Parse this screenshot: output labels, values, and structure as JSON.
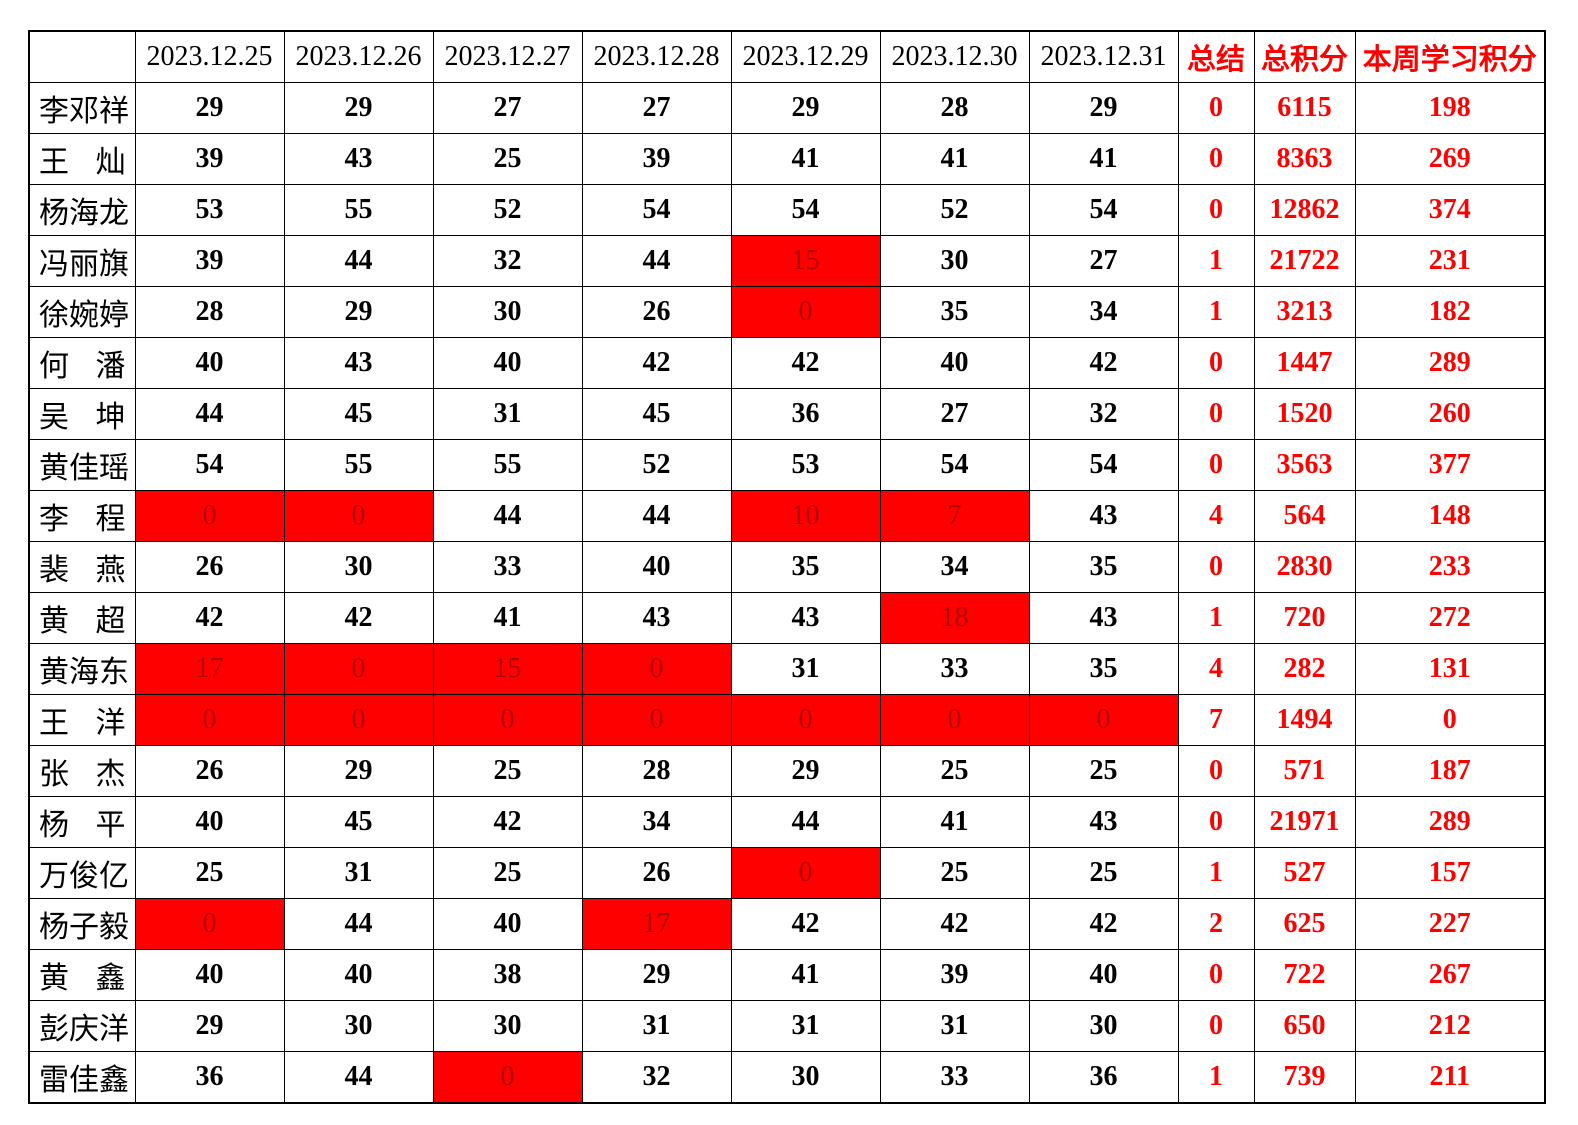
{
  "colors": {
    "accent_red": "#ff0000",
    "highlight_bg": "#ff0000",
    "highlight_text": "#b00000",
    "grid_line": "#000000"
  },
  "table": {
    "corner_label": "",
    "date_columns": [
      "2023.12.25",
      "2023.12.26",
      "2023.12.27",
      "2023.12.28",
      "2023.12.29",
      "2023.12.30",
      "2023.12.31"
    ],
    "summary_columns": [
      "总结",
      "总积分",
      "本周学习积分"
    ],
    "rows": [
      {
        "name": "李邓祥",
        "days": [
          29,
          29,
          27,
          27,
          29,
          28,
          29
        ],
        "red": [],
        "summary": 0,
        "total": 6115,
        "week": 198
      },
      {
        "name": "王灿",
        "days": [
          39,
          43,
          25,
          39,
          41,
          41,
          41
        ],
        "red": [],
        "summary": 0,
        "total": 8363,
        "week": 269
      },
      {
        "name": "杨海龙",
        "days": [
          53,
          55,
          52,
          54,
          54,
          52,
          54
        ],
        "red": [],
        "summary": 0,
        "total": 12862,
        "week": 374
      },
      {
        "name": "冯丽旗",
        "days": [
          39,
          44,
          32,
          44,
          15,
          30,
          27
        ],
        "red": [
          4
        ],
        "summary": 1,
        "total": 21722,
        "week": 231
      },
      {
        "name": "徐婉婷",
        "days": [
          28,
          29,
          30,
          26,
          0,
          35,
          34
        ],
        "red": [
          4
        ],
        "summary": 1,
        "total": 3213,
        "week": 182
      },
      {
        "name": "何潘",
        "days": [
          40,
          43,
          40,
          42,
          42,
          40,
          42
        ],
        "red": [],
        "summary": 0,
        "total": 1447,
        "week": 289
      },
      {
        "name": "吴坤",
        "days": [
          44,
          45,
          31,
          45,
          36,
          27,
          32
        ],
        "red": [],
        "summary": 0,
        "total": 1520,
        "week": 260
      },
      {
        "name": "黄佳瑶",
        "days": [
          54,
          55,
          55,
          52,
          53,
          54,
          54
        ],
        "red": [],
        "summary": 0,
        "total": 3563,
        "week": 377
      },
      {
        "name": "李程",
        "days": [
          0,
          0,
          44,
          44,
          10,
          7,
          43
        ],
        "red": [
          0,
          1,
          4,
          5
        ],
        "summary": 4,
        "total": 564,
        "week": 148
      },
      {
        "name": "裴燕",
        "days": [
          26,
          30,
          33,
          40,
          35,
          34,
          35
        ],
        "red": [],
        "summary": 0,
        "total": 2830,
        "week": 233
      },
      {
        "name": "黄超",
        "days": [
          42,
          42,
          41,
          43,
          43,
          18,
          43
        ],
        "red": [
          5
        ],
        "summary": 1,
        "total": 720,
        "week": 272
      },
      {
        "name": "黄海东",
        "days": [
          17,
          0,
          15,
          0,
          31,
          33,
          35
        ],
        "red": [
          0,
          1,
          2,
          3
        ],
        "summary": 4,
        "total": 282,
        "week": 131
      },
      {
        "name": "王洋",
        "days": [
          0,
          0,
          0,
          0,
          0,
          0,
          0
        ],
        "red": [
          0,
          1,
          2,
          3,
          4,
          5,
          6
        ],
        "summary": 7,
        "total": 1494,
        "week": 0
      },
      {
        "name": "张杰",
        "days": [
          26,
          29,
          25,
          28,
          29,
          25,
          25
        ],
        "red": [],
        "summary": 0,
        "total": 571,
        "week": 187
      },
      {
        "name": "杨平",
        "days": [
          40,
          45,
          42,
          34,
          44,
          41,
          43
        ],
        "red": [],
        "summary": 0,
        "total": 21971,
        "week": 289
      },
      {
        "name": "万俊亿",
        "days": [
          25,
          31,
          25,
          26,
          0,
          25,
          25
        ],
        "red": [
          4
        ],
        "summary": 1,
        "total": 527,
        "week": 157
      },
      {
        "name": "杨子毅",
        "days": [
          0,
          44,
          40,
          17,
          42,
          42,
          42
        ],
        "red": [
          0,
          3
        ],
        "summary": 2,
        "total": 625,
        "week": 227
      },
      {
        "name": "黄鑫",
        "days": [
          40,
          40,
          38,
          29,
          41,
          39,
          40
        ],
        "red": [],
        "summary": 0,
        "total": 722,
        "week": 267
      },
      {
        "name": "彭庆洋",
        "days": [
          29,
          30,
          30,
          31,
          31,
          31,
          30
        ],
        "red": [],
        "summary": 0,
        "total": 650,
        "week": 212
      },
      {
        "name": "雷佳鑫",
        "days": [
          36,
          44,
          0,
          32,
          30,
          33,
          36
        ],
        "red": [
          2
        ],
        "summary": 1,
        "total": 739,
        "week": 211
      }
    ]
  }
}
